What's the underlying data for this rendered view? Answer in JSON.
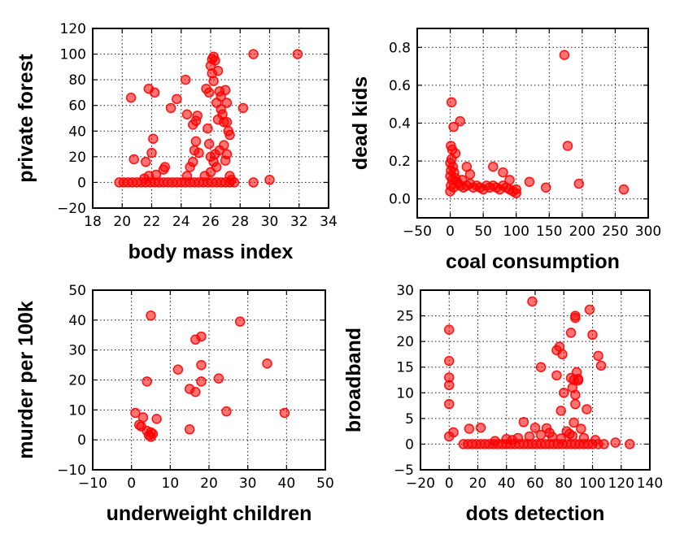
{
  "chart_data": [
    {
      "type": "scatter",
      "xlabel": "body mass index",
      "ylabel": "private forest",
      "xlim": [
        18,
        34
      ],
      "ylim": [
        -20,
        120
      ],
      "xticks": [
        18,
        20,
        22,
        24,
        26,
        28,
        30,
        32,
        34
      ],
      "yticks": [
        -20,
        0,
        20,
        40,
        60,
        80,
        100,
        120
      ],
      "color": "#ff0000",
      "points": [
        [
          19.8,
          0
        ],
        [
          20.1,
          0
        ],
        [
          20.4,
          0
        ],
        [
          20.7,
          0
        ],
        [
          21.0,
          0
        ],
        [
          21.3,
          0
        ],
        [
          21.6,
          0
        ],
        [
          21.9,
          0
        ],
        [
          22.2,
          0
        ],
        [
          22.5,
          0
        ],
        [
          22.8,
          0
        ],
        [
          23.1,
          0
        ],
        [
          23.4,
          0
        ],
        [
          23.7,
          0
        ],
        [
          24.0,
          0
        ],
        [
          24.3,
          0
        ],
        [
          24.6,
          0
        ],
        [
          24.9,
          0
        ],
        [
          25.2,
          0
        ],
        [
          25.5,
          0
        ],
        [
          25.8,
          0
        ],
        [
          26.1,
          0
        ],
        [
          26.4,
          0
        ],
        [
          26.7,
          0
        ],
        [
          27.0,
          0
        ],
        [
          27.3,
          0
        ],
        [
          27.6,
          0
        ],
        [
          28.9,
          0
        ],
        [
          30.0,
          2
        ],
        [
          21.5,
          3
        ],
        [
          21.8,
          5
        ],
        [
          22.3,
          6
        ],
        [
          22.8,
          10
        ],
        [
          22.9,
          12
        ],
        [
          21.6,
          16
        ],
        [
          20.8,
          18
        ],
        [
          22.0,
          23
        ],
        [
          22.1,
          34
        ],
        [
          24.4,
          5
        ],
        [
          24.6,
          12
        ],
        [
          24.8,
          16
        ],
        [
          24.9,
          25
        ],
        [
          25.0,
          32
        ],
        [
          25.2,
          23
        ],
        [
          24.8,
          45
        ],
        [
          25.0,
          48
        ],
        [
          24.4,
          53
        ],
        [
          25.1,
          52
        ],
        [
          20.6,
          66
        ],
        [
          21.8,
          73
        ],
        [
          22.2,
          70
        ],
        [
          23.3,
          58
        ],
        [
          23.7,
          65
        ],
        [
          24.3,
          80
        ],
        [
          25.7,
          73
        ],
        [
          25.9,
          70
        ],
        [
          26.0,
          91
        ],
        [
          26.1,
          96
        ],
        [
          26.2,
          98
        ],
        [
          26.3,
          95
        ],
        [
          26.1,
          85
        ],
        [
          26.2,
          79
        ],
        [
          26.5,
          87
        ],
        [
          26.6,
          71
        ],
        [
          26.7,
          67
        ],
        [
          26.4,
          62
        ],
        [
          26.7,
          57
        ],
        [
          26.8,
          53
        ],
        [
          26.9,
          47
        ],
        [
          27.0,
          72
        ],
        [
          27.1,
          62
        ],
        [
          27.2,
          40
        ],
        [
          27.3,
          37
        ],
        [
          27.1,
          47
        ],
        [
          26.9,
          29
        ],
        [
          26.3,
          22
        ],
        [
          26.0,
          20
        ],
        [
          26.2,
          16
        ],
        [
          26.4,
          12
        ],
        [
          26.6,
          25
        ],
        [
          27.1,
          22
        ],
        [
          27.3,
          5
        ],
        [
          27.4,
          2
        ],
        [
          28.2,
          58
        ],
        [
          28.9,
          100
        ],
        [
          31.9,
          100
        ],
        [
          25.6,
          5
        ],
        [
          25.9,
          30
        ],
        [
          25.8,
          42
        ],
        [
          26.5,
          49
        ],
        [
          26.0,
          8
        ],
        [
          27.0,
          17
        ]
      ]
    },
    {
      "type": "scatter",
      "xlabel": "coal consumption",
      "ylabel": "dead kids",
      "xlim": [
        -50,
        300
      ],
      "ylim": [
        -0.1,
        0.9
      ],
      "xticks": [
        -50,
        0,
        50,
        100,
        150,
        200,
        250,
        300
      ],
      "yticks": [
        0.0,
        0.2,
        0.4,
        0.6,
        0.8
      ],
      "color": "#ff0000",
      "points": [
        [
          2,
          0.51
        ],
        [
          5,
          0.38
        ],
        [
          15,
          0.41
        ],
        [
          1,
          0.28
        ],
        [
          3,
          0.26
        ],
        [
          8,
          0.24
        ],
        [
          2,
          0.21
        ],
        [
          0,
          0.19
        ],
        [
          4,
          0.17
        ],
        [
          1,
          0.15
        ],
        [
          6,
          0.14
        ],
        [
          0,
          0.12
        ],
        [
          3,
          0.1
        ],
        [
          10,
          0.09
        ],
        [
          1,
          0.07
        ],
        [
          5,
          0.06
        ],
        [
          0,
          0.04
        ],
        [
          12,
          0.08
        ],
        [
          15,
          0.07
        ],
        [
          20,
          0.06
        ],
        [
          25,
          0.07
        ],
        [
          30,
          0.08
        ],
        [
          35,
          0.06
        ],
        [
          40,
          0.07
        ],
        [
          45,
          0.06
        ],
        [
          50,
          0.05
        ],
        [
          55,
          0.07
        ],
        [
          60,
          0.06
        ],
        [
          65,
          0.07
        ],
        [
          70,
          0.06
        ],
        [
          75,
          0.05
        ],
        [
          80,
          0.07
        ],
        [
          85,
          0.06
        ],
        [
          90,
          0.05
        ],
        [
          95,
          0.04
        ],
        [
          100,
          0.05
        ],
        [
          100,
          0.03
        ],
        [
          25,
          0.17
        ],
        [
          30,
          0.13
        ],
        [
          65,
          0.17
        ],
        [
          80,
          0.14
        ],
        [
          90,
          0.1
        ],
        [
          120,
          0.09
        ],
        [
          145,
          0.06
        ],
        [
          173,
          0.76
        ],
        [
          178,
          0.28
        ],
        [
          195,
          0.08
        ],
        [
          263,
          0.05
        ],
        [
          8,
          0.11
        ],
        [
          18,
          0.1
        ]
      ]
    },
    {
      "type": "scatter",
      "xlabel": "underweight children",
      "ylabel": "murder per 100k",
      "xlim": [
        -10,
        50
      ],
      "ylim": [
        -10,
        50
      ],
      "xticks": [
        -10,
        0,
        10,
        20,
        30,
        40,
        50
      ],
      "yticks": [
        -10,
        0,
        10,
        20,
        30,
        40,
        50
      ],
      "color": "#ff0000",
      "points": [
        [
          5,
          41.5
        ],
        [
          28,
          39.5
        ],
        [
          18,
          34.5
        ],
        [
          16.5,
          33.5
        ],
        [
          35,
          25.5
        ],
        [
          18,
          25
        ],
        [
          12,
          23.5
        ],
        [
          22.5,
          20.5
        ],
        [
          4,
          19.5
        ],
        [
          18,
          19.5
        ],
        [
          15,
          17
        ],
        [
          16.5,
          16
        ],
        [
          24.5,
          9.5
        ],
        [
          39.5,
          9
        ],
        [
          1,
          9
        ],
        [
          3,
          7.5
        ],
        [
          6.5,
          7
        ],
        [
          15,
          3.5
        ],
        [
          2,
          5
        ],
        [
          2.5,
          4.5
        ],
        [
          4,
          3
        ],
        [
          5,
          2.5
        ],
        [
          5.5,
          2
        ],
        [
          4.5,
          1.5
        ],
        [
          5,
          1
        ]
      ]
    },
    {
      "type": "scatter",
      "xlabel": "dots detection",
      "ylabel": "broadband",
      "xlim": [
        -20,
        140
      ],
      "ylim": [
        -5,
        30
      ],
      "xticks": [
        -20,
        0,
        20,
        40,
        60,
        80,
        100,
        120,
        140
      ],
      "yticks": [
        -5,
        0,
        5,
        10,
        15,
        20,
        25,
        30
      ],
      "color": "#ff0000",
      "points": [
        [
          0,
          22.3
        ],
        [
          0,
          16.2
        ],
        [
          0,
          13
        ],
        [
          0,
          11.5
        ],
        [
          0,
          7.8
        ],
        [
          0,
          1.5
        ],
        [
          3,
          2.3
        ],
        [
          58,
          27.8
        ],
        [
          88,
          25
        ],
        [
          88,
          24.6
        ],
        [
          98,
          26.2
        ],
        [
          100,
          21.3
        ],
        [
          104,
          17.2
        ],
        [
          106,
          15.3
        ],
        [
          75,
          18.3
        ],
        [
          77,
          19
        ],
        [
          79,
          17.5
        ],
        [
          85,
          21.7
        ],
        [
          64,
          15
        ],
        [
          89,
          14
        ],
        [
          87,
          12.5
        ],
        [
          86,
          11
        ],
        [
          88,
          9.6
        ],
        [
          80,
          10
        ],
        [
          85,
          12.9
        ],
        [
          90,
          12.7
        ],
        [
          96,
          6.8
        ],
        [
          88,
          7.8
        ],
        [
          78,
          6.5
        ],
        [
          75,
          13.4
        ],
        [
          90,
          12.4
        ],
        [
          10,
          0
        ],
        [
          13,
          0
        ],
        [
          16,
          0
        ],
        [
          19,
          0
        ],
        [
          22,
          0
        ],
        [
          25,
          0
        ],
        [
          28,
          0
        ],
        [
          31,
          0
        ],
        [
          34,
          0
        ],
        [
          37,
          0
        ],
        [
          40,
          0
        ],
        [
          43,
          0
        ],
        [
          46,
          0
        ],
        [
          49,
          0
        ],
        [
          52,
          0
        ],
        [
          55,
          0
        ],
        [
          58,
          0
        ],
        [
          61,
          0
        ],
        [
          64,
          0
        ],
        [
          67,
          0
        ],
        [
          70,
          0
        ],
        [
          73,
          0
        ],
        [
          76,
          0
        ],
        [
          79,
          0
        ],
        [
          82,
          0
        ],
        [
          85,
          0
        ],
        [
          88,
          0
        ],
        [
          91,
          0
        ],
        [
          94,
          0
        ],
        [
          97,
          0
        ],
        [
          100,
          0
        ],
        [
          104,
          0
        ],
        [
          108,
          0
        ],
        [
          116,
          0.3
        ],
        [
          126,
          0
        ],
        [
          14,
          3
        ],
        [
          22,
          3.2
        ],
        [
          52,
          4.3
        ],
        [
          60,
          3.2
        ],
        [
          68,
          3.1
        ],
        [
          82,
          2.5
        ],
        [
          87,
          4.2
        ],
        [
          92,
          3
        ],
        [
          40,
          1
        ],
        [
          48,
          1.2
        ],
        [
          56,
          1.5
        ],
        [
          64,
          1.8
        ],
        [
          72,
          1.4
        ],
        [
          78,
          1.1
        ],
        [
          86,
          1.6
        ],
        [
          94,
          1.2
        ],
        [
          102,
          0.8
        ],
        [
          32,
          0.6
        ],
        [
          44,
          0.8
        ],
        [
          70,
          2.2
        ],
        [
          84,
          2
        ]
      ]
    }
  ]
}
